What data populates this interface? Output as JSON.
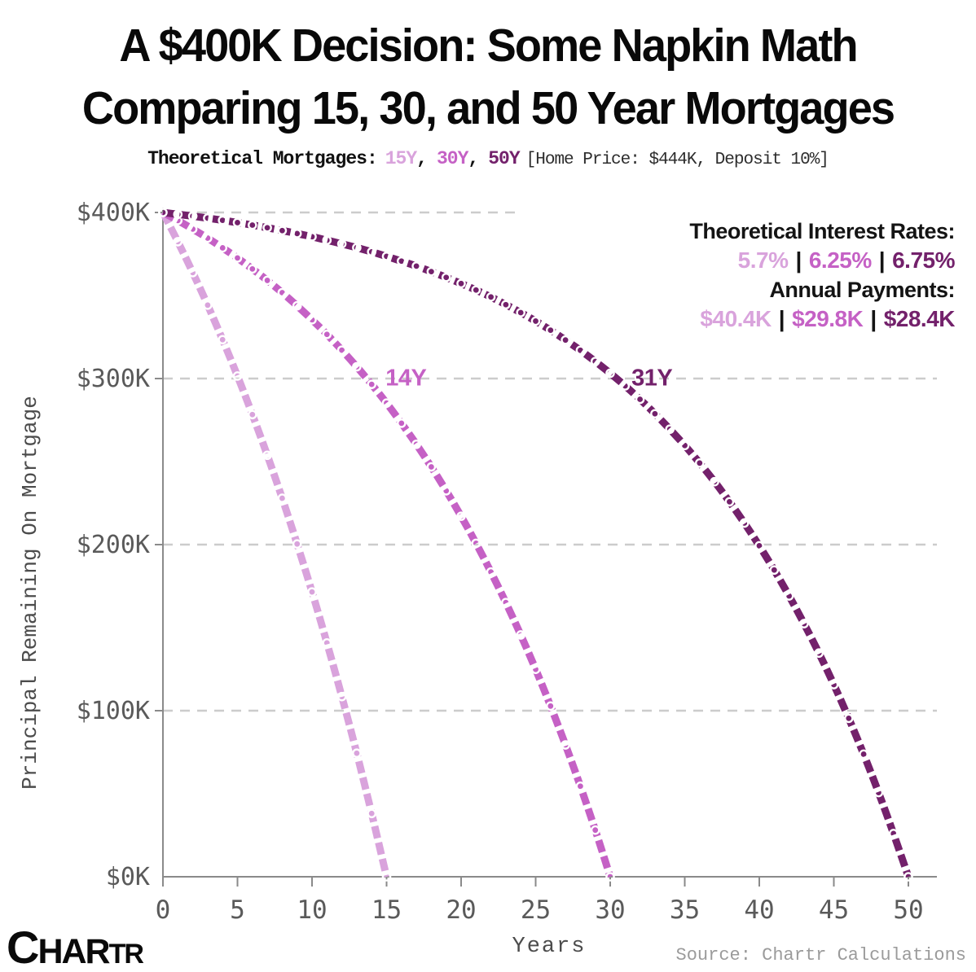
{
  "title": {
    "line1": "A $400K Decision: Some Napkin Math",
    "line2": "Comparing 15, 30, and 50 Year Mortgages"
  },
  "subtitle": {
    "prefix": "Theoretical Mortgages:",
    "items": [
      "15Y",
      "30Y",
      "50Y"
    ],
    "separator": ",",
    "note": "[Home Price: $444K, Deposit 10%]"
  },
  "legend": {
    "rates_label": "Theoretical Interest Rates:",
    "rates": [
      "5.7%",
      "6.25%",
      "6.75%"
    ],
    "payments_label": "Annual Payments:",
    "payments": [
      "$40.4K",
      "$29.8K",
      "$28.4K"
    ],
    "separator": "|"
  },
  "colors": {
    "y15": "#D9A3DC",
    "y30": "#C561C5",
    "y50": "#73216B",
    "grid": "#cccccc",
    "axis": "#8a8a8a",
    "tick_text": "#5a5a5a"
  },
  "annotations": [
    {
      "text": "14Y",
      "year": 16.3,
      "value_k": 300,
      "color_key": "y30"
    },
    {
      "text": "31Y",
      "year": 32.8,
      "value_k": 300,
      "color_key": "y50"
    }
  ],
  "footer": {
    "logo_parts": [
      "C",
      "HAR",
      "TR"
    ],
    "source": "Source: Chartr Calculations"
  },
  "chart_data": {
    "type": "line",
    "title": "A $400K Decision: Some Napkin Math Comparing 15, 30, and 50 Year Mortgages",
    "xlabel": "Years",
    "ylabel": "Principal Remaining On Mortgage",
    "x_ticks": [
      0,
      5,
      10,
      15,
      20,
      25,
      30,
      35,
      40,
      45,
      50
    ],
    "y_ticks_k": [
      0,
      100,
      200,
      300,
      400
    ],
    "y_tick_labels": [
      "$0K",
      "$100K",
      "$200K",
      "$300K",
      "$400K"
    ],
    "xlim": [
      0,
      52
    ],
    "ylim_k": [
      0,
      400
    ],
    "grid": "horizontal dashed",
    "legend_position": "top-right",
    "marker": "open circle, yearly",
    "series": [
      {
        "name": "15Y",
        "interest_rate": "5.7%",
        "annual_payment": "$40.4K",
        "color_key": "y15",
        "x_start": 0,
        "x_step_years": 1,
        "values_k": [
          400,
          382.4,
          363.8,
          344.2,
          323.4,
          301.5,
          278.3,
          253.8,
          227.9,
          200.4,
          171.5,
          140.8,
          108.5,
          74.4,
          38.1,
          0
        ]
      },
      {
        "name": "30Y",
        "interest_rate": "6.25%",
        "annual_payment": "$29.8K",
        "color_key": "y30",
        "x_start": 0,
        "x_step_years": 1,
        "values_k": [
          400,
          395.2,
          390.0,
          384.6,
          378.7,
          372.6,
          366.0,
          359.1,
          351.7,
          343.8,
          335.4,
          326.6,
          317.1,
          307.1,
          296.5,
          285.2,
          273.1,
          260.4,
          246.8,
          232.4,
          217.1,
          200.8,
          183.5,
          165.1,
          145.6,
          124.9,
          102.8,
          79.4,
          54.5,
          28.1,
          0
        ]
      },
      {
        "name": "50Y",
        "interest_rate": "6.75%",
        "annual_payment": "$28.4K",
        "color_key": "y50",
        "x_start": 0,
        "x_step_years": 1,
        "values_k": [
          400,
          398.9,
          397.8,
          396.6,
          395.3,
          393.9,
          392.4,
          390.8,
          389.1,
          387.3,
          385.4,
          383.3,
          381.1,
          378.8,
          376.3,
          373.6,
          370.7,
          367.7,
          364.4,
          360.9,
          357.2,
          353.3,
          349.1,
          344.5,
          339.7,
          334.6,
          329.1,
          323.2,
          317.0,
          310.3,
          303.2,
          295.6,
          287.5,
          278.8,
          269.5,
          259.7,
          249.1,
          237.9,
          225.8,
          213.0,
          199.3,
          184.7,
          169.1,
          152.4,
          134.7,
          115.7,
          95.4,
          73.8,
          50.7,
          26.0,
          0
        ]
      }
    ]
  }
}
